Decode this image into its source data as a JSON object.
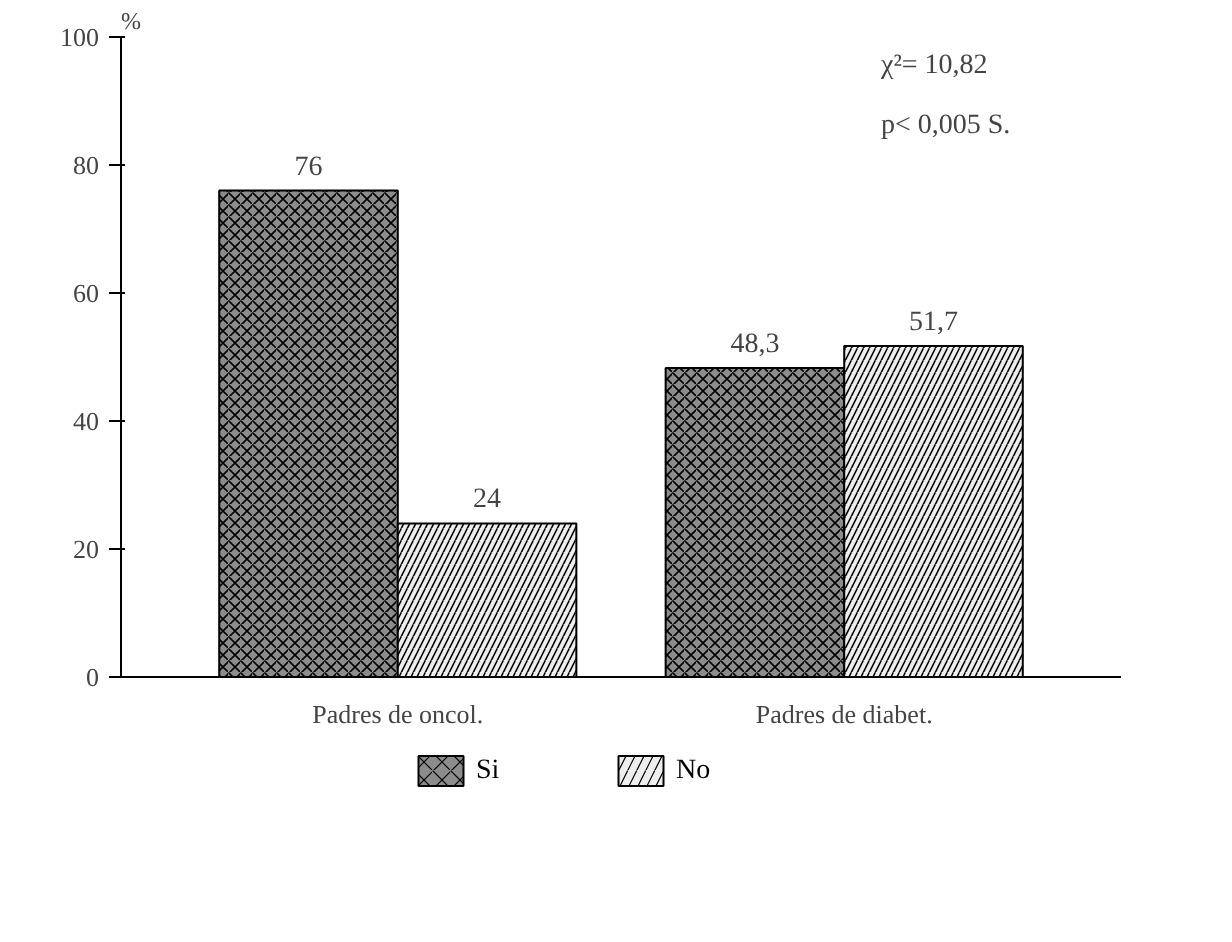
{
  "chart_data": {
    "type": "bar",
    "ylabel": "%",
    "categories": [
      "Padres de oncol.",
      "Padres de diabet."
    ],
    "series": [
      {
        "name": "Si",
        "color": "#8c8c8c",
        "values": [
          76,
          48.3
        ],
        "value_labels": [
          "76",
          "48,3"
        ]
      },
      {
        "name": "No",
        "color": "#eeeeee",
        "values": [
          24,
          51.7
        ],
        "value_labels": [
          "24",
          "51,7"
        ]
      }
    ],
    "ylim": [
      0,
      100
    ],
    "yticks": [
      0,
      20,
      40,
      60,
      80,
      100
    ],
    "grid": false,
    "legend": "bottom",
    "annotations": [
      "χ²= 10,82",
      "p< 0,005 S."
    ]
  }
}
